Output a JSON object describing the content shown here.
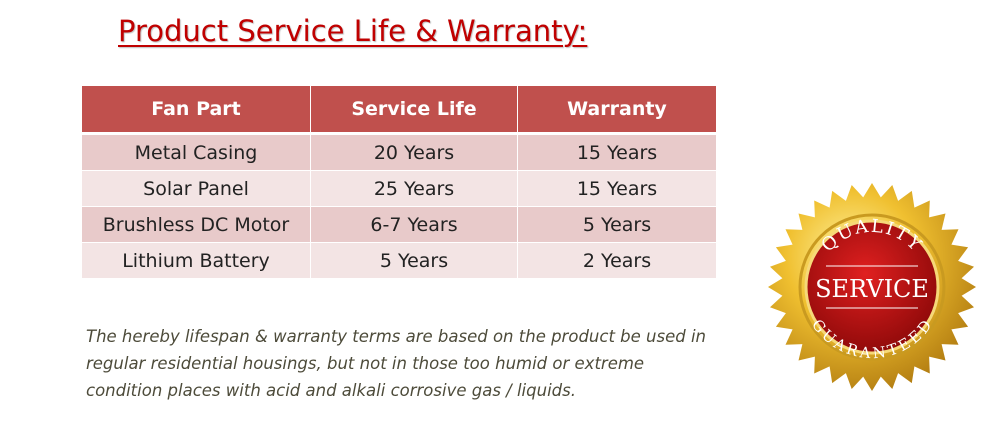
{
  "title": "Product Service Life & Warranty:",
  "table": {
    "header": [
      "Fan Part",
      "Service Life",
      "Warranty"
    ],
    "rows": [
      [
        "Metal Casing",
        "20 Years",
        "15 Years"
      ],
      [
        "Solar Panel",
        "25 Years",
        "15 Years"
      ],
      [
        "Brushless DC Motor",
        "6-7 Years",
        "5 Years"
      ],
      [
        "Lithium Battery",
        "5 Years",
        "2 Years"
      ]
    ]
  },
  "note": [
    "The hereby lifespan & warranty terms are based on the product be used in",
    "regular residential housings, but not in those too humid or extreme",
    "condition places with acid and alkali corrosive gas / liquids."
  ],
  "badge": {
    "top": "QUALITY",
    "center": "SERVICE",
    "bottom": "GUARANTEED"
  }
}
